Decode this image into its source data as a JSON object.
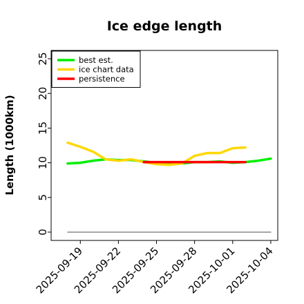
{
  "chart_data": {
    "type": "line",
    "title": "Ice edge length",
    "xlabel": "",
    "ylabel": "Length (1000km)",
    "ylim": [
      -1.2,
      26.2
    ],
    "xlim": [
      "2025-09-17",
      "2025-10-04"
    ],
    "x_ticks": [
      "2025-09-19",
      "2025-09-22",
      "2025-09-25",
      "2025-09-28",
      "2025-10-01",
      "2025-10-04"
    ],
    "y_ticks": [
      0,
      5,
      10,
      15,
      20,
      25
    ],
    "grid": false,
    "legend_position": "top-left",
    "series": [
      {
        "name": "best est.",
        "color": "#00ee00",
        "x": [
          "2025-09-18",
          "2025-09-19",
          "2025-09-20",
          "2025-09-21",
          "2025-09-22",
          "2025-09-23",
          "2025-09-24",
          "2025-09-25",
          "2025-09-26",
          "2025-09-27",
          "2025-09-28",
          "2025-09-29",
          "2025-09-30",
          "2025-10-01",
          "2025-10-02",
          "2025-10-03",
          "2025-10-04"
        ],
        "y": [
          9.9,
          10.0,
          10.3,
          10.5,
          10.4,
          10.4,
          10.2,
          10.0,
          10.0,
          9.9,
          10.1,
          10.1,
          10.2,
          10.0,
          10.1,
          10.3,
          10.6
        ]
      },
      {
        "name": "ice chart data",
        "color": "#ffd700",
        "x": [
          "2025-09-18",
          "2025-09-19",
          "2025-09-20",
          "2025-09-21",
          "2025-09-22",
          "2025-09-23",
          "2025-09-24",
          "2025-09-25",
          "2025-09-26",
          "2025-09-27",
          "2025-09-28",
          "2025-09-29",
          "2025-09-30",
          "2025-10-01",
          "2025-10-02"
        ],
        "y": [
          12.9,
          12.3,
          11.6,
          10.5,
          10.3,
          10.5,
          10.1,
          9.8,
          9.7,
          9.9,
          11.0,
          11.4,
          11.4,
          12.1,
          12.2
        ]
      },
      {
        "name": "persistence",
        "color": "#ff0000",
        "x": [
          "2025-09-24",
          "2025-09-25",
          "2025-09-26",
          "2025-09-27",
          "2025-09-28",
          "2025-09-29",
          "2025-09-30",
          "2025-10-01",
          "2025-10-02"
        ],
        "y": [
          10.1,
          10.1,
          10.1,
          10.1,
          10.1,
          10.1,
          10.1,
          10.1,
          10.1
        ]
      },
      {
        "name": "",
        "color": "#888888",
        "x": [
          "2025-09-18",
          "2025-10-04"
        ],
        "y": [
          0,
          0
        ]
      }
    ]
  }
}
